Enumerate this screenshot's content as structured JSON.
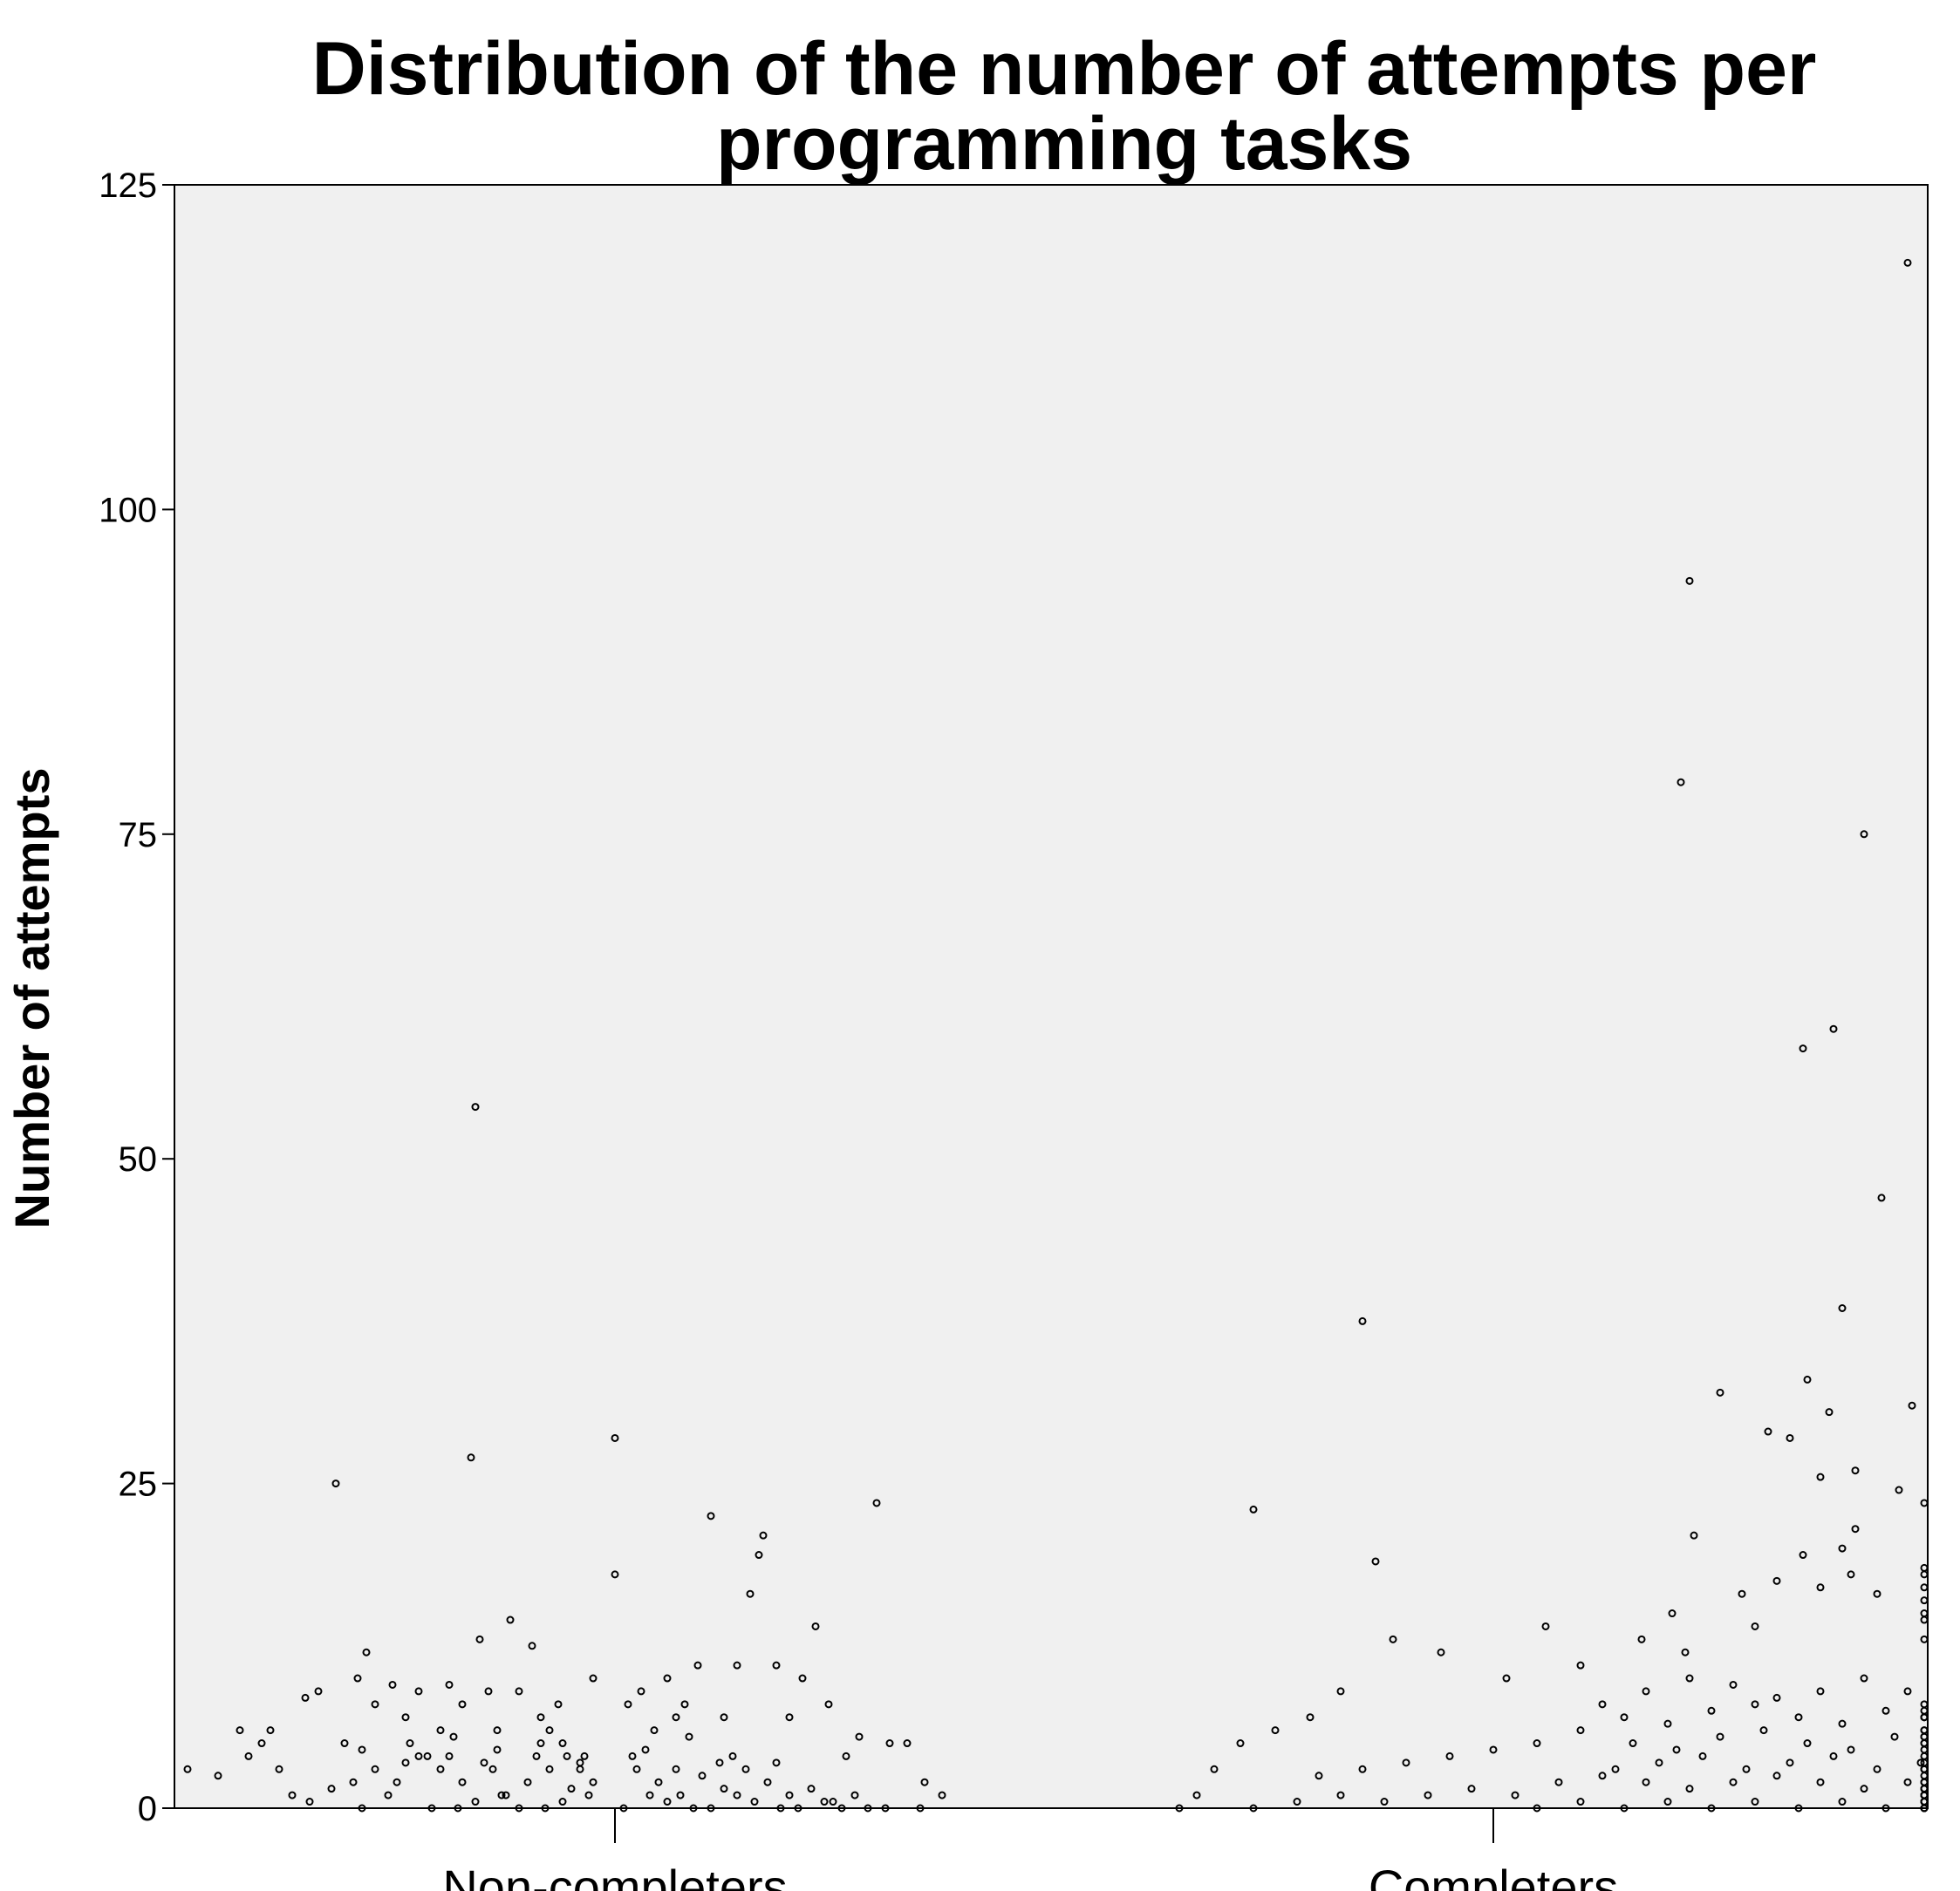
{
  "chart_data": {
    "type": "scatter",
    "title_line1": "Distribution of the number of attempts per",
    "title_line2": "programming tasks",
    "xlabel": "",
    "ylabel": "Number of attempts",
    "categories": [
      "Non-completers",
      "Completers"
    ],
    "ylim": [
      0,
      125
    ],
    "yticks": [
      0,
      25,
      50,
      75,
      100,
      125
    ],
    "grid": false,
    "legend": "none",
    "colors": {
      "plot_bg": "#f0f0f0",
      "point": "#000000"
    },
    "series": [
      {
        "category": "Non-completers",
        "points": [
          [
            -0.98,
            3
          ],
          [
            -0.91,
            2.5
          ],
          [
            -0.86,
            6
          ],
          [
            -0.84,
            4
          ],
          [
            -0.81,
            5
          ],
          [
            -0.79,
            6
          ],
          [
            -0.77,
            3
          ],
          [
            -0.74,
            1
          ],
          [
            -0.71,
            8.5
          ],
          [
            -0.68,
            9
          ],
          [
            -0.64,
            25
          ],
          [
            -0.62,
            5
          ],
          [
            -0.59,
            10
          ],
          [
            -0.57,
            12
          ],
          [
            -0.55,
            8
          ],
          [
            -0.51,
            9.5
          ],
          [
            -0.48,
            7
          ],
          [
            -0.45,
            9
          ],
          [
            -0.43,
            4
          ],
          [
            -0.4,
            6
          ],
          [
            -0.38,
            9.5
          ],
          [
            -0.35,
            8
          ],
          [
            -0.33,
            27
          ],
          [
            -0.32,
            54
          ],
          [
            -0.31,
            13
          ],
          [
            -0.29,
            9
          ],
          [
            -0.27,
            6
          ],
          [
            -0.24,
            14.5
          ],
          [
            -0.22,
            9
          ],
          [
            -0.19,
            12.5
          ],
          [
            -0.17,
            7
          ],
          [
            -0.15,
            6
          ],
          [
            -0.13,
            8
          ],
          [
            -0.12,
            5
          ],
          [
            -0.11,
            4
          ],
          [
            -0.08,
            3
          ],
          [
            -0.05,
            10
          ],
          [
            0,
            28.5
          ],
          [
            0,
            18
          ],
          [
            0.03,
            8
          ],
          [
            0.06,
            9
          ],
          [
            0.09,
            6
          ],
          [
            0.12,
            10
          ],
          [
            0.14,
            7
          ],
          [
            0.16,
            8
          ],
          [
            0.19,
            11
          ],
          [
            0.22,
            22.5
          ],
          [
            0.25,
            7
          ],
          [
            0.28,
            11
          ],
          [
            0.31,
            16.5
          ],
          [
            0.33,
            19.5
          ],
          [
            0.34,
            21
          ],
          [
            0.37,
            11
          ],
          [
            0.4,
            7
          ],
          [
            0.43,
            10
          ],
          [
            0.46,
            14
          ],
          [
            0.49,
            8
          ],
          [
            0.53,
            4
          ],
          [
            0.56,
            5.5
          ],
          [
            0.6,
            23.5
          ],
          [
            0.63,
            5
          ],
          [
            0.67,
            5
          ],
          [
            0.71,
            2
          ],
          [
            0.75,
            1
          ],
          [
            -0.6,
            2
          ],
          [
            -0.55,
            3
          ],
          [
            -0.5,
            2
          ],
          [
            -0.45,
            4
          ],
          [
            -0.4,
            3
          ],
          [
            -0.35,
            2
          ],
          [
            -0.3,
            3.5
          ],
          [
            -0.25,
            1
          ],
          [
            -0.2,
            2
          ],
          [
            -0.15,
            3
          ],
          [
            -0.1,
            1.5
          ],
          [
            -0.05,
            2
          ],
          [
            0.05,
            3
          ],
          [
            0.1,
            2
          ],
          [
            0.15,
            1
          ],
          [
            0.2,
            2.5
          ],
          [
            0.25,
            1.5
          ],
          [
            0.3,
            3
          ],
          [
            0.35,
            2
          ],
          [
            0.4,
            1
          ],
          [
            0.45,
            1.5
          ],
          [
            0.5,
            0.5
          ],
          [
            0.55,
            1
          ],
          [
            -0.7,
            0.5
          ],
          [
            -0.65,
            1.5
          ],
          [
            -0.58,
            0
          ],
          [
            -0.52,
            1
          ],
          [
            -0.42,
            0
          ],
          [
            -0.32,
            0.5
          ],
          [
            -0.22,
            0
          ],
          [
            -0.12,
            0.5
          ],
          [
            0.02,
            0
          ],
          [
            0.12,
            0.5
          ],
          [
            0.22,
            0
          ],
          [
            0.32,
            0.5
          ],
          [
            0.42,
            0
          ],
          [
            0.52,
            0
          ],
          [
            0.62,
            0
          ],
          [
            0.7,
            0
          ],
          [
            -0.36,
            0
          ],
          [
            -0.26,
            1
          ],
          [
            -0.16,
            0
          ],
          [
            -0.06,
            1
          ],
          [
            0.08,
            1
          ],
          [
            0.18,
            0
          ],
          [
            0.28,
            1
          ],
          [
            0.38,
            0
          ],
          [
            0.48,
            0.5
          ],
          [
            0.58,
            0
          ],
          [
            -0.47,
            5
          ],
          [
            -0.37,
            5.5
          ],
          [
            -0.27,
            4.5
          ],
          [
            -0.17,
            5
          ],
          [
            -0.07,
            4
          ],
          [
            0.07,
            4.5
          ],
          [
            0.17,
            5.5
          ],
          [
            0.27,
            4
          ],
          [
            0.37,
            3.5
          ],
          [
            -0.58,
            4.5
          ],
          [
            -0.48,
            3.5
          ],
          [
            -0.38,
            4
          ],
          [
            -0.28,
            3
          ],
          [
            -0.18,
            4
          ],
          [
            -0.08,
            3.5
          ],
          [
            0.04,
            4
          ],
          [
            0.14,
            3
          ],
          [
            0.24,
            3.5
          ]
        ]
      },
      {
        "category": "Completers",
        "points": [
          [
            0.95,
            119
          ],
          [
            0.45,
            94.5
          ],
          [
            0.43,
            79
          ],
          [
            0.85,
            75
          ],
          [
            0.78,
            60
          ],
          [
            0.71,
            58.5
          ],
          [
            0.89,
            47
          ],
          [
            0.8,
            38.5
          ],
          [
            0.46,
            21
          ],
          [
            0.72,
            33
          ],
          [
            0.52,
            32
          ],
          [
            -0.3,
            37.5
          ],
          [
            0.63,
            29
          ],
          [
            0.77,
            30.5
          ],
          [
            0.68,
            28.5
          ],
          [
            0.96,
            31
          ],
          [
            0.75,
            25.5
          ],
          [
            0.83,
            26
          ],
          [
            0.93,
            24.5
          ],
          [
            0.83,
            21.5
          ],
          [
            1.12,
            23.5
          ],
          [
            -0.55,
            23
          ],
          [
            0.71,
            19.5
          ],
          [
            0.8,
            20
          ],
          [
            0.88,
            16.5
          ],
          [
            1.12,
            17
          ],
          [
            1.2,
            18
          ],
          [
            1.3,
            18.5
          ],
          [
            0.65,
            17.5
          ],
          [
            0.57,
            16.5
          ],
          [
            0.41,
            15
          ],
          [
            -0.27,
            19
          ],
          [
            0.75,
            17
          ],
          [
            0.82,
            18
          ],
          [
            1.07,
            16
          ],
          [
            1.17,
            14.5
          ],
          [
            1.25,
            15
          ],
          [
            1.35,
            13
          ],
          [
            0.6,
            14
          ],
          [
            0.44,
            12
          ],
          [
            0.34,
            13
          ],
          [
            0.2,
            11
          ],
          [
            0.12,
            14
          ],
          [
            0.03,
            10
          ],
          [
            -0.12,
            12
          ],
          [
            -0.23,
            13
          ],
          [
            -0.35,
            9
          ],
          [
            -0.42,
            7
          ],
          [
            -0.5,
            6
          ],
          [
            -0.58,
            5
          ],
          [
            -0.64,
            3
          ],
          [
            -0.68,
            1
          ],
          [
            -0.72,
            0
          ],
          [
            1.38,
            7
          ],
          [
            1.44,
            5.5
          ],
          [
            1.49,
            3
          ],
          [
            1.52,
            2
          ],
          [
            1.55,
            1
          ],
          [
            1.58,
            0.5
          ],
          [
            1.62,
            0
          ],
          [
            1.6,
            0
          ],
          [
            1.55,
            0.5
          ],
          [
            1.48,
            1
          ],
          [
            0.25,
            8
          ],
          [
            0.35,
            9
          ],
          [
            0.45,
            10
          ],
          [
            0.55,
            9.5
          ],
          [
            0.65,
            8.5
          ],
          [
            0.75,
            9
          ],
          [
            0.85,
            10
          ],
          [
            0.95,
            9
          ],
          [
            1.05,
            8
          ],
          [
            1.15,
            7.5
          ],
          [
            1.25,
            7
          ],
          [
            1.35,
            6
          ],
          [
            0.3,
            7
          ],
          [
            0.4,
            6.5
          ],
          [
            0.5,
            7.5
          ],
          [
            0.6,
            8
          ],
          [
            0.7,
            7
          ],
          [
            0.8,
            6.5
          ],
          [
            0.9,
            7.5
          ],
          [
            1.0,
            7
          ],
          [
            1.1,
            6
          ],
          [
            1.2,
            5.5
          ],
          [
            1.3,
            5
          ],
          [
            0.2,
            6
          ],
          [
            0.1,
            5
          ],
          [
            0.0,
            4.5
          ],
          [
            -0.1,
            4
          ],
          [
            -0.2,
            3.5
          ],
          [
            -0.3,
            3
          ],
          [
            -0.4,
            2.5
          ],
          [
            0.32,
            5
          ],
          [
            0.42,
            4.5
          ],
          [
            0.52,
            5.5
          ],
          [
            0.62,
            6
          ],
          [
            0.72,
            5
          ],
          [
            0.82,
            4.5
          ],
          [
            0.92,
            5.5
          ],
          [
            1.02,
            5
          ],
          [
            1.12,
            4.5
          ],
          [
            1.22,
            4
          ],
          [
            1.32,
            3.5
          ],
          [
            1.42,
            3
          ],
          [
            0.28,
            3
          ],
          [
            0.38,
            3.5
          ],
          [
            0.48,
            4
          ],
          [
            0.58,
            3
          ],
          [
            0.68,
            3.5
          ],
          [
            0.78,
            4
          ],
          [
            0.88,
            3
          ],
          [
            0.98,
            3.5
          ],
          [
            1.08,
            3
          ],
          [
            1.18,
            2.5
          ],
          [
            1.28,
            2
          ],
          [
            1.38,
            1.5
          ],
          [
            0.15,
            2
          ],
          [
            0.25,
            2.5
          ],
          [
            0.35,
            2
          ],
          [
            0.45,
            1.5
          ],
          [
            0.55,
            2
          ],
          [
            0.65,
            2.5
          ],
          [
            0.75,
            2
          ],
          [
            0.85,
            1.5
          ],
          [
            0.95,
            2
          ],
          [
            1.05,
            1.5
          ],
          [
            1.15,
            1
          ],
          [
            1.25,
            1.5
          ],
          [
            1.35,
            1
          ],
          [
            0.05,
            1
          ],
          [
            -0.05,
            1.5
          ],
          [
            -0.15,
            1
          ],
          [
            -0.25,
            0.5
          ],
          [
            -0.35,
            1
          ],
          [
            -0.45,
            0.5
          ],
          [
            -0.55,
            0
          ],
          [
            0.1,
            0
          ],
          [
            0.2,
            0.5
          ],
          [
            0.3,
            0
          ],
          [
            0.4,
            0.5
          ],
          [
            0.5,
            0
          ],
          [
            0.6,
            0.5
          ],
          [
            0.7,
            0
          ],
          [
            0.8,
            0.5
          ],
          [
            0.9,
            0
          ],
          [
            1.0,
            0.5
          ],
          [
            1.1,
            0
          ],
          [
            1.2,
            0.5
          ],
          [
            1.3,
            0
          ],
          [
            1.4,
            0.5
          ],
          [
            1.45,
            0
          ]
        ]
      }
    ]
  }
}
